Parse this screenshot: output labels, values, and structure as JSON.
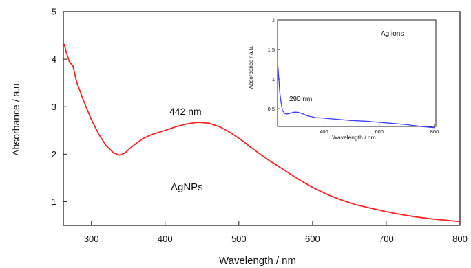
{
  "chart_data": [
    {
      "type": "line",
      "xlabel": "Wavelength / nm",
      "ylabel": "Absorbance / a.u.",
      "xlim": [
        262,
        800
      ],
      "ylim": [
        0.5,
        5
      ],
      "x_ticks": [
        300,
        400,
        500,
        600,
        700,
        800
      ],
      "y_ticks": [
        1,
        2,
        3,
        4,
        5
      ],
      "grid": false,
      "series": [
        {
          "color": "#ff2020",
          "points": [
            [
              263,
              4.35
            ],
            [
              266,
              4.1
            ],
            [
              270,
              3.98
            ],
            [
              275,
              3.82
            ],
            [
              280,
              3.55
            ],
            [
              290,
              3.1
            ],
            [
              300,
              2.73
            ],
            [
              310,
              2.42
            ],
            [
              320,
              2.18
            ],
            [
              330,
              2.03
            ],
            [
              338,
              1.98
            ],
            [
              345,
              2.02
            ],
            [
              355,
              2.16
            ],
            [
              370,
              2.33
            ],
            [
              385,
              2.43
            ],
            [
              400,
              2.5
            ],
            [
              415,
              2.58
            ],
            [
              430,
              2.64
            ],
            [
              445,
              2.67
            ],
            [
              460,
              2.65
            ],
            [
              475,
              2.57
            ],
            [
              490,
              2.44
            ],
            [
              505,
              2.28
            ],
            [
              520,
              2.1
            ],
            [
              540,
              1.88
            ],
            [
              560,
              1.68
            ],
            [
              580,
              1.48
            ],
            [
              600,
              1.3
            ],
            [
              620,
              1.15
            ],
            [
              640,
              1.03
            ],
            [
              660,
              0.93
            ],
            [
              680,
              0.86
            ],
            [
              700,
              0.79
            ],
            [
              720,
              0.73
            ],
            [
              740,
              0.68
            ],
            [
              760,
              0.64
            ],
            [
              780,
              0.61
            ],
            [
              800,
              0.58
            ]
          ]
        }
      ],
      "annotations": [
        "442 nm",
        "AgNPs"
      ]
    },
    {
      "type": "line",
      "xlabel": "Wavelength / nm",
      "ylabel": "Absorbance / a.u.",
      "xlim": [
        232,
        805
      ],
      "ylim": [
        0.2,
        2.0
      ],
      "x_ticks": [
        400,
        600,
        800
      ],
      "y_ticks": [
        0.5,
        1.0,
        1.5,
        2.0
      ],
      "grid": false,
      "series": [
        {
          "color": "#3a3aff",
          "points": [
            [
              232,
              1.3
            ],
            [
              236,
              1.05
            ],
            [
              240,
              0.78
            ],
            [
              245,
              0.6
            ],
            [
              250,
              0.47
            ],
            [
              258,
              0.42
            ],
            [
              266,
              0.41
            ],
            [
              276,
              0.42
            ],
            [
              290,
              0.44
            ],
            [
              305,
              0.44
            ],
            [
              320,
              0.42
            ],
            [
              340,
              0.38
            ],
            [
              370,
              0.35
            ],
            [
              400,
              0.34
            ],
            [
              450,
              0.32
            ],
            [
              500,
              0.3
            ],
            [
              550,
              0.29
            ],
            [
              600,
              0.27
            ],
            [
              650,
              0.25
            ],
            [
              700,
              0.23
            ],
            [
              750,
              0.2
            ],
            [
              800,
              0.18
            ]
          ]
        }
      ],
      "annotations": [
        "290 nm",
        "Ag ions"
      ]
    }
  ]
}
